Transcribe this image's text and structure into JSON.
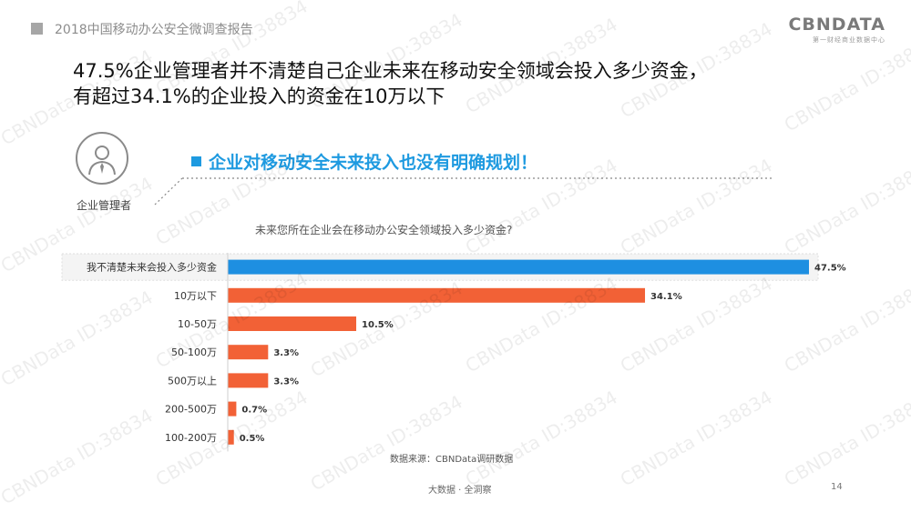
{
  "header": {
    "report_title": "2018中国移动办公安全微调查报告"
  },
  "logo": {
    "main": "CBNDATA",
    "sub": "第一财经商业数据中心"
  },
  "headline": {
    "line1": "47.5%企业管理者并不清楚自己企业未来在移动安全领域会投入多少资金，",
    "line2": "有超过34.1%的企业投入的资金在10万以下"
  },
  "persona": {
    "label": "企业管理者",
    "icon": "person-tie-icon"
  },
  "subheading": "企业对移动安全未来投入也没有明确规划！",
  "colors": {
    "accent_blue": "#1e9ae0",
    "bar_orange": "#f26136",
    "bar_blue": "#1e8fe1"
  },
  "chart_data": {
    "type": "bar",
    "orientation": "horizontal",
    "title": "未来您所在企业会在移动办公安全领域投入多少资金?",
    "categories": [
      "我不清楚未来会投入多少资金",
      "10万以下",
      "10-50万",
      "50-100万",
      "500万以上",
      "200-500万",
      "100-200万"
    ],
    "values": [
      47.5,
      34.1,
      10.5,
      3.3,
      3.3,
      0.7,
      0.5
    ],
    "value_labels": [
      "47.5%",
      "34.1%",
      "10.5%",
      "3.3%",
      "3.3%",
      "0.7%",
      "0.5%"
    ],
    "highlight_index": 0,
    "xlim": [
      0,
      47.5
    ],
    "grid": false,
    "legend": "none"
  },
  "source": "数据来源：CBNData调研数据",
  "footer": {
    "tagline": "大数据 · 全洞察",
    "page": "14"
  },
  "watermark": "CBNData ID:38834"
}
